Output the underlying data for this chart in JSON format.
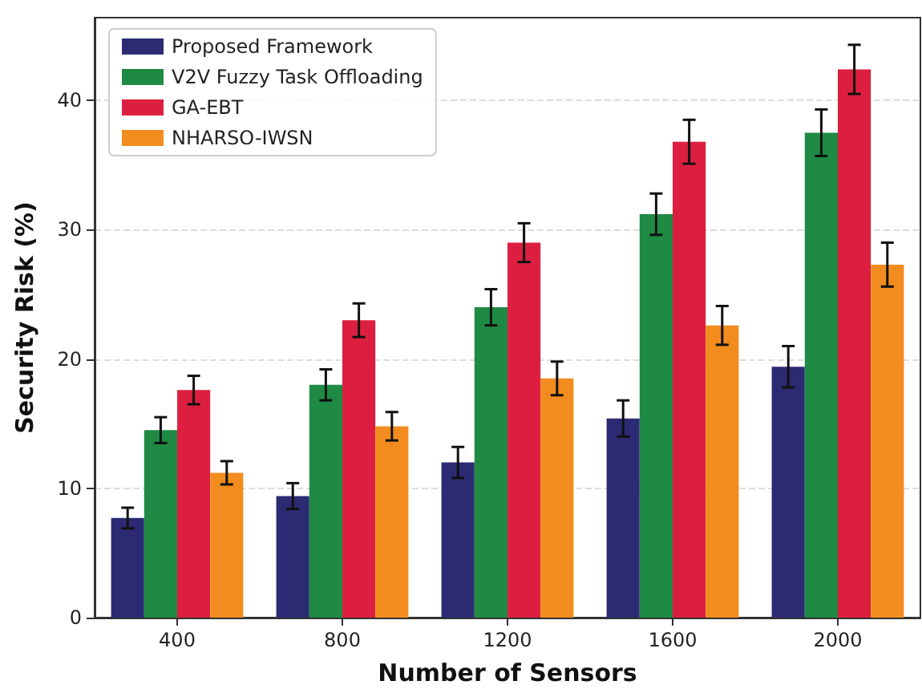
{
  "chart_data": {
    "type": "bar",
    "xlabel": "Number of Sensors",
    "ylabel": "Security Risk (%)",
    "categories": [
      "400",
      "800",
      "1200",
      "1600",
      "2000"
    ],
    "series": [
      {
        "name": "Proposed Framework",
        "color": "#2b2a72",
        "values": [
          7.7,
          9.4,
          12.0,
          15.4,
          19.4
        ],
        "errors": [
          0.8,
          1.0,
          1.2,
          1.4,
          1.6
        ]
      },
      {
        "name": "V2V Fuzzy Task Offloading",
        "color": "#1f8a44",
        "values": [
          14.5,
          18.0,
          24.0,
          31.2,
          37.5
        ],
        "errors": [
          1.0,
          1.2,
          1.4,
          1.6,
          1.8
        ]
      },
      {
        "name": "GA-EBT",
        "color": "#dc1f40",
        "values": [
          17.6,
          23.0,
          29.0,
          36.8,
          42.4
        ],
        "errors": [
          1.1,
          1.3,
          1.5,
          1.7,
          1.9
        ]
      },
      {
        "name": "NHARSO-IWSN",
        "color": "#f28c1e",
        "values": [
          11.2,
          14.8,
          18.5,
          22.6,
          27.3
        ],
        "errors": [
          0.9,
          1.1,
          1.3,
          1.5,
          1.7
        ]
      }
    ],
    "ylim": [
      0,
      46.4
    ],
    "yticks": [
      0,
      10,
      20,
      30,
      40
    ],
    "grid": "y",
    "legend": "top left"
  }
}
